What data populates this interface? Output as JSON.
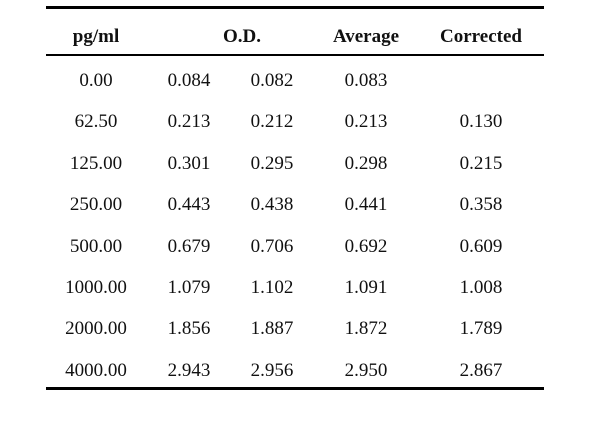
{
  "table": {
    "headers": {
      "concentration": "pg/ml",
      "od": "O.D.",
      "average": "Average",
      "corrected": "Corrected"
    },
    "rows": [
      {
        "conc": "0.00",
        "od1": "0.084",
        "od2": "0.082",
        "avg": "0.083",
        "corr": ""
      },
      {
        "conc": "62.50",
        "od1": "0.213",
        "od2": "0.212",
        "avg": "0.213",
        "corr": "0.130"
      },
      {
        "conc": "125.00",
        "od1": "0.301",
        "od2": "0.295",
        "avg": "0.298",
        "corr": "0.215"
      },
      {
        "conc": "250.00",
        "od1": "0.443",
        "od2": "0.438",
        "avg": "0.441",
        "corr": "0.358"
      },
      {
        "conc": "500.00",
        "od1": "0.679",
        "od2": "0.706",
        "avg": "0.692",
        "corr": "0.609"
      },
      {
        "conc": "1000.00",
        "od1": "1.079",
        "od2": "1.102",
        "avg": "1.091",
        "corr": "1.008"
      },
      {
        "conc": "2000.00",
        "od1": "1.856",
        "od2": "1.887",
        "avg": "1.872",
        "corr": "1.789"
      },
      {
        "conc": "4000.00",
        "od1": "2.943",
        "od2": "2.956",
        "avg": "2.950",
        "corr": "2.867"
      }
    ]
  }
}
